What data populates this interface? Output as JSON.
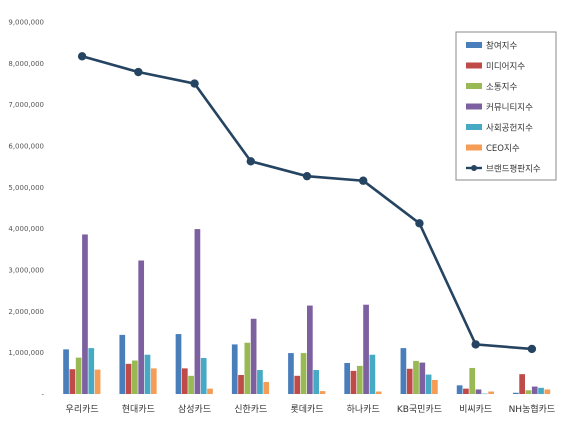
{
  "chart_data": {
    "type": "bar",
    "categories": [
      "우리카드",
      "현대카드",
      "삼성카드",
      "신한카드",
      "롯데카드",
      "하나카드",
      "KB국민카드",
      "비씨카드",
      "NH농협카드"
    ],
    "ylim": [
      0,
      9000000
    ],
    "y_ticks": [
      "-",
      "1,000,000",
      "2,000,000",
      "3,000,000",
      "4,000,000",
      "5,000,000",
      "6,000,000",
      "7,000,000",
      "8,000,000",
      "9,000,000"
    ],
    "legend_position": "top-right",
    "grid": false,
    "series": [
      {
        "name": "참여지수",
        "color": "#4a7ebb",
        "values": [
          1080000,
          1430000,
          1450000,
          1200000,
          990000,
          750000,
          1110000,
          210000,
          30000
        ]
      },
      {
        "name": "미디어지수",
        "color": "#be4b48",
        "values": [
          600000,
          730000,
          620000,
          460000,
          440000,
          560000,
          610000,
          130000,
          480000
        ]
      },
      {
        "name": "소통지수",
        "color": "#98b954",
        "values": [
          880000,
          810000,
          440000,
          1240000,
          990000,
          680000,
          800000,
          630000,
          90000
        ]
      },
      {
        "name": "커뮤니티지수",
        "color": "#7d60a0",
        "values": [
          3860000,
          3230000,
          3990000,
          1820000,
          2140000,
          2160000,
          760000,
          110000,
          180000
        ]
      },
      {
        "name": "사회공헌지수",
        "color": "#46aac5",
        "values": [
          1110000,
          950000,
          870000,
          580000,
          580000,
          950000,
          470000,
          10000,
          150000
        ]
      },
      {
        "name": "CEO지수",
        "color": "#f59d56",
        "values": [
          590000,
          620000,
          130000,
          290000,
          70000,
          60000,
          340000,
          60000,
          110000
        ]
      }
    ],
    "line_series": {
      "name": "브랜드평판지수",
      "color": "#254461",
      "values": [
        8170000,
        7790000,
        7510000,
        5630000,
        5270000,
        5160000,
        4130000,
        1200000,
        1090000
      ]
    }
  }
}
